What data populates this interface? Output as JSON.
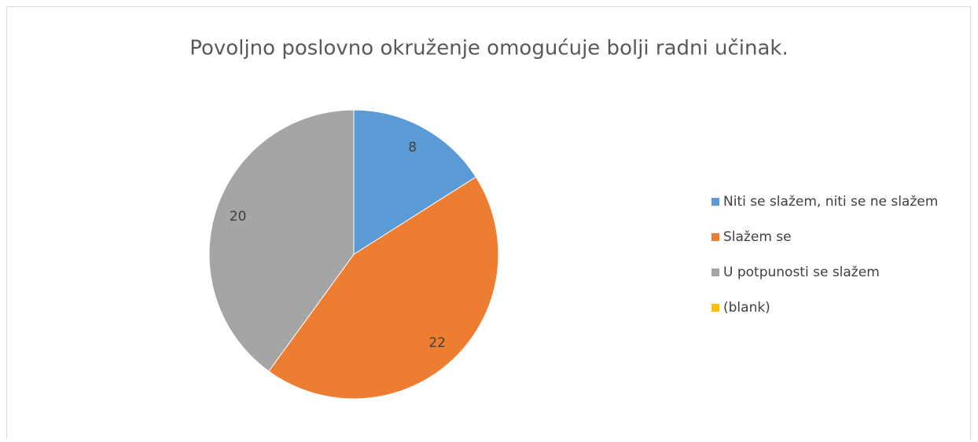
{
  "chart_data": {
    "type": "pie",
    "title": "Povoljno poslovno okruženje omogućuje bolji radni učinak.",
    "categories": [
      "Niti se slažem, niti se ne slažem",
      "Slažem se",
      "U potpunosti se slažem",
      "(blank)"
    ],
    "values": [
      8,
      22,
      20,
      null
    ],
    "colors": [
      "#5b9bd5",
      "#ed7d31",
      "#a5a5a5",
      "#ffc000"
    ],
    "legend": "right"
  }
}
